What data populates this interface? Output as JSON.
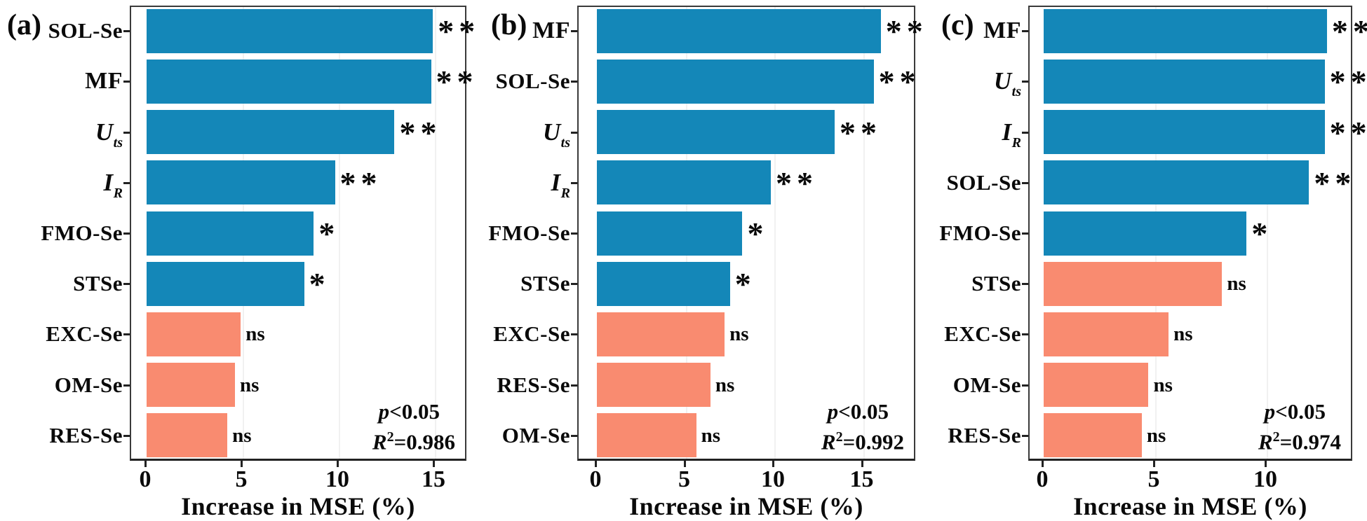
{
  "figure": {
    "xlabel": "Increase in MSE (%)",
    "colors": {
      "significant_bar": "#1487B8",
      "not_significant_bar": "#F98B70",
      "frame": "#3a3a3a",
      "text": "#0a0a0a",
      "gridline": "#f1f1f1"
    }
  },
  "chart_data": [
    {
      "type": "bar",
      "orientation": "horizontal",
      "panel_label": "(a)",
      "title": "",
      "xlabel": "Increase in MSE (%)",
      "xticks": [
        0,
        5,
        10,
        15
      ],
      "xlim": [
        0,
        16.7
      ],
      "grid": "faint-vertical",
      "legend_position": "none",
      "categories": [
        {
          "text": "SOL-Se"
        },
        {
          "text": "MF",
          "italic": true
        },
        {
          "base": "U",
          "sub": "ts",
          "italic": true
        },
        {
          "base": "I",
          "sub": "R",
          "italic": true
        },
        {
          "text": "FMO-Se"
        },
        {
          "text": "STSe"
        },
        {
          "text": "EXC-Se"
        },
        {
          "text": "OM-Se"
        },
        {
          "text": "RES-Se"
        }
      ],
      "values": [
        14.9,
        14.8,
        12.9,
        9.8,
        8.7,
        8.2,
        4.9,
        4.6,
        4.2
      ],
      "significance": [
        "**",
        "**",
        "**",
        "**",
        "*",
        "*",
        "ns",
        "ns",
        "ns"
      ],
      "annotation": {
        "p_italic": "p",
        "p_rest": "<0.05",
        "r_italic": "R",
        "r_sup": "2",
        "r_rest": "=0.986"
      }
    },
    {
      "type": "bar",
      "orientation": "horizontal",
      "panel_label": "(b)",
      "title": "",
      "xlabel": "Increase in MSE (%)",
      "xticks": [
        0,
        5,
        10,
        15
      ],
      "xlim": [
        0,
        18.0
      ],
      "grid": "faint-vertical",
      "legend_position": "none",
      "categories": [
        {
          "text": "MF",
          "italic": true
        },
        {
          "text": "SOL-Se"
        },
        {
          "base": "U",
          "sub": "ts",
          "italic": true
        },
        {
          "base": "I",
          "sub": "R",
          "italic": true
        },
        {
          "text": "FMO-Se"
        },
        {
          "text": "STSe"
        },
        {
          "text": "EXC-Se"
        },
        {
          "text": "RES-Se"
        },
        {
          "text": "OM-Se"
        }
      ],
      "values": [
        16.0,
        15.6,
        13.4,
        9.8,
        8.2,
        7.5,
        7.2,
        6.4,
        5.6
      ],
      "significance": [
        "**",
        "**",
        "**",
        "**",
        "*",
        "*",
        "ns",
        "ns",
        "ns"
      ],
      "annotation": {
        "p_italic": "p",
        "p_rest": "<0.05",
        "r_italic": "R",
        "r_sup": "2",
        "r_rest": "=0.992"
      }
    },
    {
      "type": "bar",
      "orientation": "horizontal",
      "panel_label": "(c)",
      "title": "",
      "xlabel": "Increase in MSE (%)",
      "xticks": [
        0,
        5,
        10
      ],
      "xlim": [
        0,
        13.9
      ],
      "grid": "faint-vertical",
      "legend_position": "none",
      "categories": [
        {
          "text": "MF",
          "italic": true
        },
        {
          "base": "U",
          "sub": "ts",
          "italic": true
        },
        {
          "base": "I",
          "sub": "R",
          "italic": true
        },
        {
          "text": "SOL-Se"
        },
        {
          "text": "FMO-Se"
        },
        {
          "text": "STSe"
        },
        {
          "text": "EXC-Se"
        },
        {
          "text": "OM-Se"
        },
        {
          "text": "RES-Se"
        }
      ],
      "values": [
        12.7,
        12.6,
        12.6,
        11.9,
        9.1,
        8.0,
        5.6,
        4.7,
        4.4
      ],
      "significance": [
        "**",
        "**",
        "**",
        "**",
        "*",
        "ns",
        "ns",
        "ns",
        "ns"
      ],
      "annotation": {
        "p_italic": "p",
        "p_rest": "<0.05",
        "r_italic": "R",
        "r_sup": "2",
        "r_rest": "=0.974"
      }
    }
  ]
}
